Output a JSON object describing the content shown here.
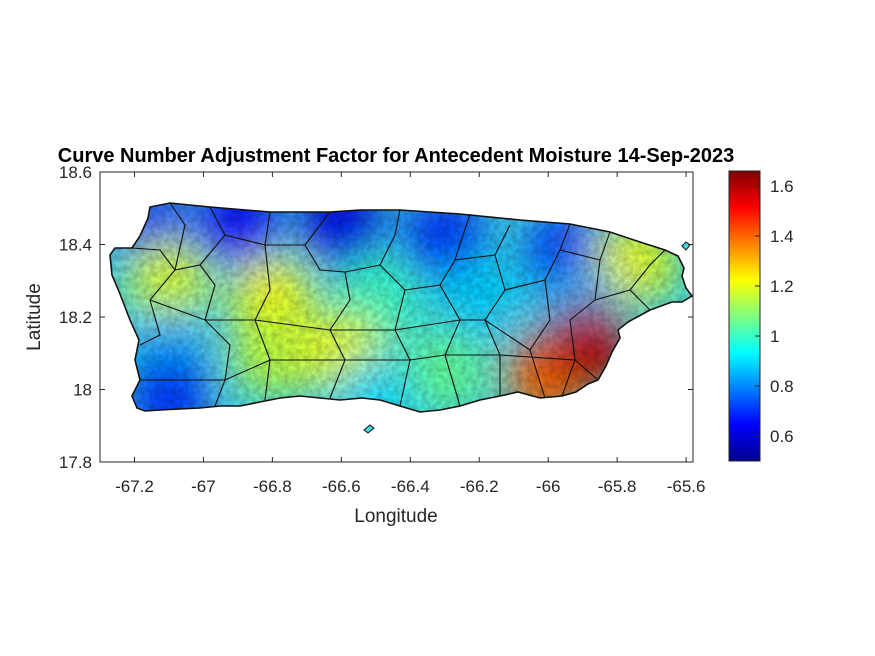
{
  "chart_data": {
    "type": "heatmap",
    "title": "Curve Number Adjustment Factor for Antecedent Moisture 14-Sep-2023",
    "xlabel": "Longitude",
    "ylabel": "Latitude",
    "xlim": [
      -67.3,
      -65.58
    ],
    "ylim": [
      17.8,
      18.6
    ],
    "xticks": [
      -67.2,
      -67,
      -66.8,
      -66.6,
      -66.4,
      -66.2,
      -66,
      -65.8,
      -65.6
    ],
    "xtick_labels": [
      "-67.2",
      "-67",
      "-66.8",
      "-66.6",
      "-66.4",
      "-66.2",
      "-66",
      "-65.8",
      "-65.6"
    ],
    "yticks": [
      17.8,
      18,
      18.2,
      18.4,
      18.6
    ],
    "ytick_labels": [
      "17.8",
      "18",
      "18.2",
      "18.4",
      "18.6"
    ],
    "colorbar": {
      "colormap": "jet",
      "clim": [
        0.5,
        1.66
      ],
      "ticks": [
        0.6,
        0.8,
        1,
        1.2,
        1.4,
        1.6
      ],
      "tick_labels": [
        "0.6",
        "0.8",
        "1",
        "1.2",
        "1.4",
        "1.6"
      ]
    },
    "grid": false,
    "regions": [
      {
        "lon": -67.15,
        "lat": 18.45,
        "value": 0.72
      },
      {
        "lon": -66.9,
        "lat": 18.45,
        "value": 0.65
      },
      {
        "lon": -66.6,
        "lat": 18.45,
        "value": 0.62
      },
      {
        "lon": -66.3,
        "lat": 18.42,
        "value": 0.7
      },
      {
        "lon": -65.95,
        "lat": 18.38,
        "value": 0.72
      },
      {
        "lon": -65.75,
        "lat": 18.35,
        "value": 1.2
      },
      {
        "lon": -67.1,
        "lat": 18.3,
        "value": 1.18
      },
      {
        "lon": -66.8,
        "lat": 18.25,
        "value": 1.22
      },
      {
        "lon": -66.5,
        "lat": 18.25,
        "value": 1.0
      },
      {
        "lon": -66.2,
        "lat": 18.25,
        "value": 0.88
      },
      {
        "lon": -65.9,
        "lat": 18.22,
        "value": 0.85
      },
      {
        "lon": -67.1,
        "lat": 18.1,
        "value": 0.85
      },
      {
        "lon": -66.8,
        "lat": 18.1,
        "value": 1.15
      },
      {
        "lon": -66.6,
        "lat": 18.1,
        "value": 1.2
      },
      {
        "lon": -66.3,
        "lat": 18.05,
        "value": 1.05
      },
      {
        "lon": -66.0,
        "lat": 18.04,
        "value": 1.4
      },
      {
        "lon": -65.88,
        "lat": 18.12,
        "value": 1.6
      },
      {
        "lon": -67.1,
        "lat": 17.98,
        "value": 0.7
      },
      {
        "lon": -66.5,
        "lat": 17.97,
        "value": 0.9
      }
    ]
  }
}
